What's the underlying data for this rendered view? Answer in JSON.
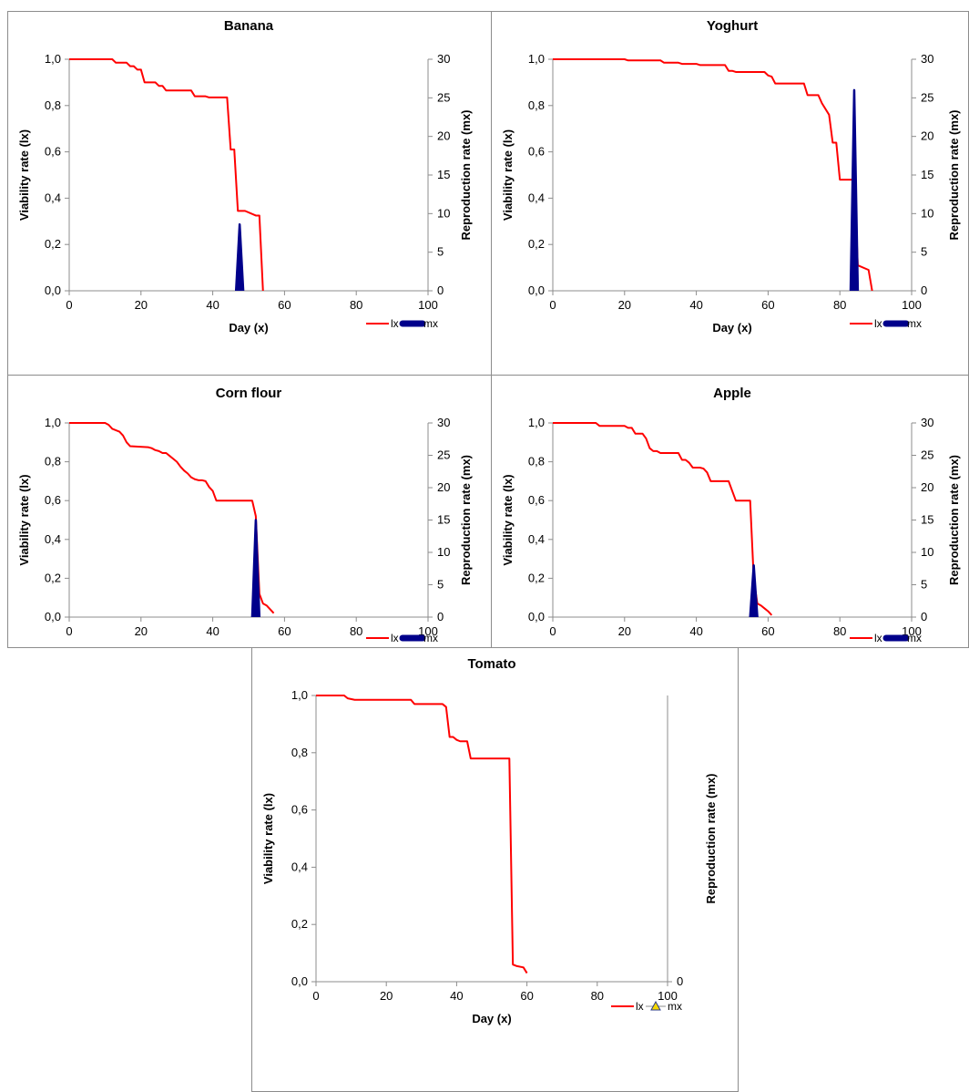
{
  "colors": {
    "lx": "#ff0000",
    "mx": "#00008b",
    "mx_marker": "#f5d800",
    "axis": "#8c8c8c"
  },
  "chart_data": [
    {
      "type": "line",
      "title": "Banana",
      "xlabel": "Day (x)",
      "ylabel": "Viability rate (lx)",
      "y2label": "Reproduction rate (mx)",
      "xlim": [
        0,
        100
      ],
      "ylim": [
        0,
        1.0
      ],
      "y2lim": [
        0,
        30
      ],
      "xticks": [
        "0",
        "20",
        "40",
        "60",
        "80",
        "100"
      ],
      "yticks": [
        "0,0",
        "0,2",
        "0,4",
        "0,6",
        "0,8",
        "1,0"
      ],
      "y2ticks": [
        "0",
        "5",
        "10",
        "15",
        "20",
        "25",
        "30"
      ],
      "legend": {
        "placement": "bottom-right",
        "items": [
          "lx",
          "mx"
        ]
      },
      "series": [
        {
          "name": "lx",
          "axis": "left",
          "x": [
            0,
            12,
            13,
            16,
            17,
            18,
            19,
            20,
            21,
            24,
            25,
            26,
            27,
            34,
            35,
            38,
            39,
            44,
            45,
            46,
            47,
            48,
            49,
            52,
            53,
            54
          ],
          "y": [
            1.0,
            1.0,
            0.985,
            0.985,
            0.97,
            0.97,
            0.955,
            0.955,
            0.9,
            0.9,
            0.885,
            0.885,
            0.865,
            0.865,
            0.84,
            0.84,
            0.835,
            0.835,
            0.61,
            0.61,
            0.345,
            0.345,
            0.345,
            0.325,
            0.325,
            0.0
          ]
        },
        {
          "name": "mx",
          "axis": "right",
          "style": "fill",
          "x": [
            46.5,
            47.5,
            48.5
          ],
          "y": [
            0,
            8.6,
            0
          ]
        }
      ]
    },
    {
      "type": "line",
      "title": "Yoghurt",
      "xlabel": "Day (x)",
      "ylabel": "Viability rate (lx)",
      "y2label": "Reproduction rate (mx)",
      "xlim": [
        0,
        100
      ],
      "ylim": [
        0,
        1.0
      ],
      "y2lim": [
        0,
        30
      ],
      "xticks": [
        "0",
        "20",
        "40",
        "60",
        "80",
        "100"
      ],
      "yticks": [
        "0,0",
        "0,2",
        "0,4",
        "0,6",
        "0,8",
        "1,0"
      ],
      "y2ticks": [
        "0",
        "5",
        "10",
        "15",
        "20",
        "25",
        "30"
      ],
      "legend": {
        "placement": "bottom-right",
        "items": [
          "lx",
          "mx"
        ]
      },
      "series": [
        {
          "name": "lx",
          "axis": "left",
          "x": [
            0,
            20,
            21,
            30,
            31,
            35,
            36,
            40,
            41,
            48,
            49,
            50,
            51,
            59,
            60,
            61,
            62,
            70,
            71,
            74,
            75,
            77,
            78,
            79,
            80,
            81,
            82,
            84,
            85,
            88,
            89
          ],
          "y": [
            1.0,
            1.0,
            0.995,
            0.995,
            0.985,
            0.985,
            0.98,
            0.98,
            0.975,
            0.975,
            0.95,
            0.95,
            0.945,
            0.945,
            0.93,
            0.925,
            0.895,
            0.895,
            0.845,
            0.845,
            0.81,
            0.76,
            0.64,
            0.64,
            0.48,
            0.48,
            0.48,
            0.48,
            0.11,
            0.09,
            0.0
          ]
        },
        {
          "name": "mx",
          "axis": "right",
          "style": "fill",
          "x": [
            83,
            84,
            85
          ],
          "y": [
            0,
            26,
            0
          ]
        }
      ]
    },
    {
      "type": "line",
      "title": "Corn flour",
      "xlabel": "Day (x)",
      "ylabel": "Viability rate (lx)",
      "y2label": "Reproduction rate (mx)",
      "xlim": [
        0,
        100
      ],
      "ylim": [
        0,
        1.0
      ],
      "y2lim": [
        0,
        30
      ],
      "xticks": [
        "0",
        "20",
        "40",
        "60",
        "80",
        "100"
      ],
      "yticks": [
        "0,0",
        "0,2",
        "0,4",
        "0,6",
        "0,8",
        "1,0"
      ],
      "y2ticks": [
        "0",
        "5",
        "10",
        "15",
        "20",
        "25",
        "30"
      ],
      "legend": {
        "placement": "bottom-right",
        "items": [
          "lx",
          "mx"
        ]
      },
      "series": [
        {
          "name": "lx",
          "axis": "left",
          "x": [
            0,
            10,
            11,
            12,
            14,
            15,
            16,
            17,
            22,
            23,
            24,
            25,
            26,
            27,
            28,
            29,
            30,
            31,
            32,
            33,
            34,
            35,
            36,
            37,
            38,
            39,
            40,
            41,
            51,
            52,
            53,
            54,
            55,
            56,
            57
          ],
          "y": [
            1.0,
            1.0,
            0.99,
            0.97,
            0.955,
            0.935,
            0.9,
            0.88,
            0.875,
            0.87,
            0.86,
            0.855,
            0.845,
            0.845,
            0.83,
            0.815,
            0.8,
            0.775,
            0.755,
            0.74,
            0.72,
            0.71,
            0.705,
            0.705,
            0.7,
            0.67,
            0.65,
            0.6,
            0.6,
            0.52,
            0.12,
            0.07,
            0.06,
            0.04,
            0.02
          ]
        },
        {
          "name": "mx",
          "axis": "right",
          "style": "fill",
          "x": [
            51,
            52,
            53
          ],
          "y": [
            0,
            15,
            0
          ]
        }
      ]
    },
    {
      "type": "line",
      "title": "Apple",
      "xlabel": "Day (x)",
      "ylabel": "Viability rate (lx)",
      "y2label": "Reproduction rate (mx)",
      "xlim": [
        0,
        100
      ],
      "ylim": [
        0,
        1.0
      ],
      "y2lim": [
        0,
        30
      ],
      "xticks": [
        "0",
        "20",
        "40",
        "60",
        "80",
        "100"
      ],
      "yticks": [
        "0,0",
        "0,2",
        "0,4",
        "0,6",
        "0,8",
        "1,0"
      ],
      "y2ticks": [
        "0",
        "5",
        "10",
        "15",
        "20",
        "25",
        "30"
      ],
      "legend": {
        "placement": "bottom-right",
        "items": [
          "lx",
          "mx"
        ]
      },
      "series": [
        {
          "name": "lx",
          "axis": "left",
          "x": [
            0,
            12,
            13,
            20,
            21,
            22,
            23,
            25,
            26,
            27,
            28,
            29,
            30,
            31,
            35,
            36,
            37,
            38,
            39,
            40,
            41,
            42,
            43,
            44,
            45,
            49,
            50,
            51,
            52,
            55,
            56,
            57,
            58,
            59,
            60,
            61
          ],
          "y": [
            1.0,
            1.0,
            0.985,
            0.985,
            0.975,
            0.975,
            0.945,
            0.945,
            0.92,
            0.87,
            0.855,
            0.855,
            0.845,
            0.845,
            0.845,
            0.81,
            0.81,
            0.795,
            0.77,
            0.77,
            0.77,
            0.765,
            0.745,
            0.7,
            0.7,
            0.7,
            0.65,
            0.6,
            0.6,
            0.6,
            0.2,
            0.07,
            0.06,
            0.045,
            0.03,
            0.01
          ]
        },
        {
          "name": "mx",
          "axis": "right",
          "style": "fill",
          "x": [
            55,
            56,
            57
          ],
          "y": [
            0,
            8,
            0
          ]
        }
      ]
    },
    {
      "type": "line",
      "title": "Tomato",
      "xlabel": "Day (x)",
      "ylabel": "Viability rate (lx)",
      "y2label": "Reproduction rate (mx)",
      "xlim": [
        0,
        100
      ],
      "ylim": [
        0,
        1.0
      ],
      "y2lim": [
        0,
        1
      ],
      "xticks": [
        "0",
        "20",
        "40",
        "60",
        "80",
        "100"
      ],
      "yticks": [
        "0,0",
        "0,2",
        "0,4",
        "0,6",
        "0,8",
        "1,0"
      ],
      "y2ticks": [
        "0"
      ],
      "legend": {
        "placement": "bottom-right",
        "items": [
          "lx",
          "mx"
        ],
        "mx_marker": "triangle"
      },
      "series": [
        {
          "name": "lx",
          "axis": "left",
          "x": [
            0,
            8,
            9,
            11,
            27,
            28,
            36,
            37,
            38,
            39,
            40,
            41,
            43,
            44,
            55,
            56,
            57,
            59,
            60
          ],
          "y": [
            1.0,
            1.0,
            0.99,
            0.985,
            0.985,
            0.97,
            0.97,
            0.96,
            0.855,
            0.855,
            0.845,
            0.84,
            0.84,
            0.78,
            0.78,
            0.06,
            0.055,
            0.05,
            0.03
          ]
        }
      ]
    }
  ]
}
